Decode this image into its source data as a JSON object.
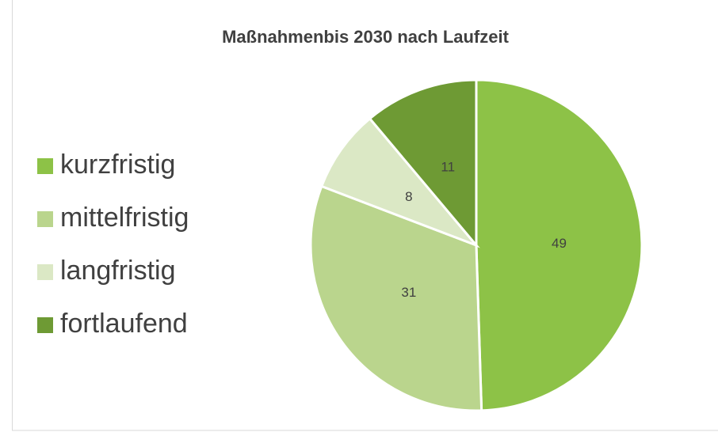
{
  "chart_data": {
    "type": "pie",
    "title": "Maßnahmenbis 2030 nach Laufzeit",
    "categories": [
      "kurzfristig",
      "mittelfristig",
      "langfristig",
      "fortlaufend"
    ],
    "values": [
      49,
      31,
      8,
      11
    ],
    "colors": [
      "#8dc247",
      "#bad58d",
      "#dbe8c5",
      "#6e9a34"
    ],
    "legend": "left"
  }
}
